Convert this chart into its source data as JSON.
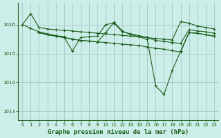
{
  "background_color": "#cceee8",
  "grid_color": "#aacccc",
  "line_color": "#1a5c1a",
  "title": "Graphe pression niveau de la mer (hPa)",
  "xlim": [
    -0.5,
    23.5
  ],
  "ylim": [
    1012.7,
    1016.75
  ],
  "yticks": [
    1013,
    1014,
    1015,
    1016
  ],
  "xticks": [
    0,
    1,
    2,
    3,
    4,
    5,
    6,
    7,
    8,
    9,
    10,
    11,
    12,
    13,
    14,
    15,
    16,
    17,
    18,
    19,
    20,
    21,
    22,
    23
  ],
  "series": [
    {
      "x": [
        0,
        1,
        2,
        3,
        4,
        5,
        6,
        7,
        8,
        9,
        10,
        11,
        12,
        13,
        14,
        15,
        16,
        17,
        18,
        19,
        20,
        21,
        22,
        23
      ],
      "y": [
        1016.0,
        1016.38,
        1015.9,
        1015.85,
        1015.82,
        1015.8,
        1015.78,
        1015.75,
        1015.73,
        1015.7,
        1015.68,
        1015.65,
        1015.63,
        1015.6,
        1015.58,
        1015.55,
        1015.52,
        1015.5,
        1015.47,
        1016.1,
        1016.05,
        1015.95,
        1015.9,
        1015.85
      ]
    },
    {
      "x": [
        0,
        1,
        2,
        3,
        4,
        5,
        6,
        7,
        8,
        9,
        10,
        11,
        12,
        13,
        14,
        15,
        16,
        17,
        18,
        19,
        20,
        21,
        22,
        23
      ],
      "y": [
        1016.0,
        1015.87,
        1015.75,
        1015.68,
        1015.62,
        1015.58,
        1015.08,
        1015.55,
        1015.58,
        1015.6,
        1016.0,
        1016.05,
        1015.75,
        1015.68,
        1015.62,
        1015.55,
        1015.45,
        1015.42,
        1015.38,
        1015.35,
        1015.82,
        1015.78,
        1015.75,
        1015.7
      ]
    },
    {
      "x": [
        2,
        3,
        4,
        5,
        6,
        7,
        8,
        9,
        10,
        11,
        12,
        13,
        14,
        15,
        16,
        17,
        18,
        19,
        20,
        21,
        22,
        23
      ],
      "y": [
        1015.72,
        1015.65,
        1015.6,
        1015.55,
        1015.5,
        1015.45,
        1015.43,
        1015.4,
        1015.38,
        1015.35,
        1015.32,
        1015.3,
        1015.28,
        1015.22,
        1015.18,
        1015.15,
        1015.1,
        1015.05,
        1015.72,
        1015.7,
        1015.65,
        1015.6
      ]
    },
    {
      "x": [
        2,
        3,
        4,
        5,
        6,
        7,
        8,
        9,
        10,
        11,
        12,
        13,
        14,
        15,
        16,
        17,
        18,
        19,
        20,
        21,
        22,
        23
      ],
      "y": [
        1015.72,
        1015.65,
        1015.6,
        1015.55,
        1015.5,
        1015.45,
        1015.43,
        1015.4,
        1015.72,
        1016.08,
        1015.78,
        1015.65,
        1015.58,
        1015.48,
        1013.88,
        1013.58,
        1014.42,
        1015.08,
        1015.72,
        1015.7,
        1015.65,
        1015.6
      ]
    }
  ]
}
